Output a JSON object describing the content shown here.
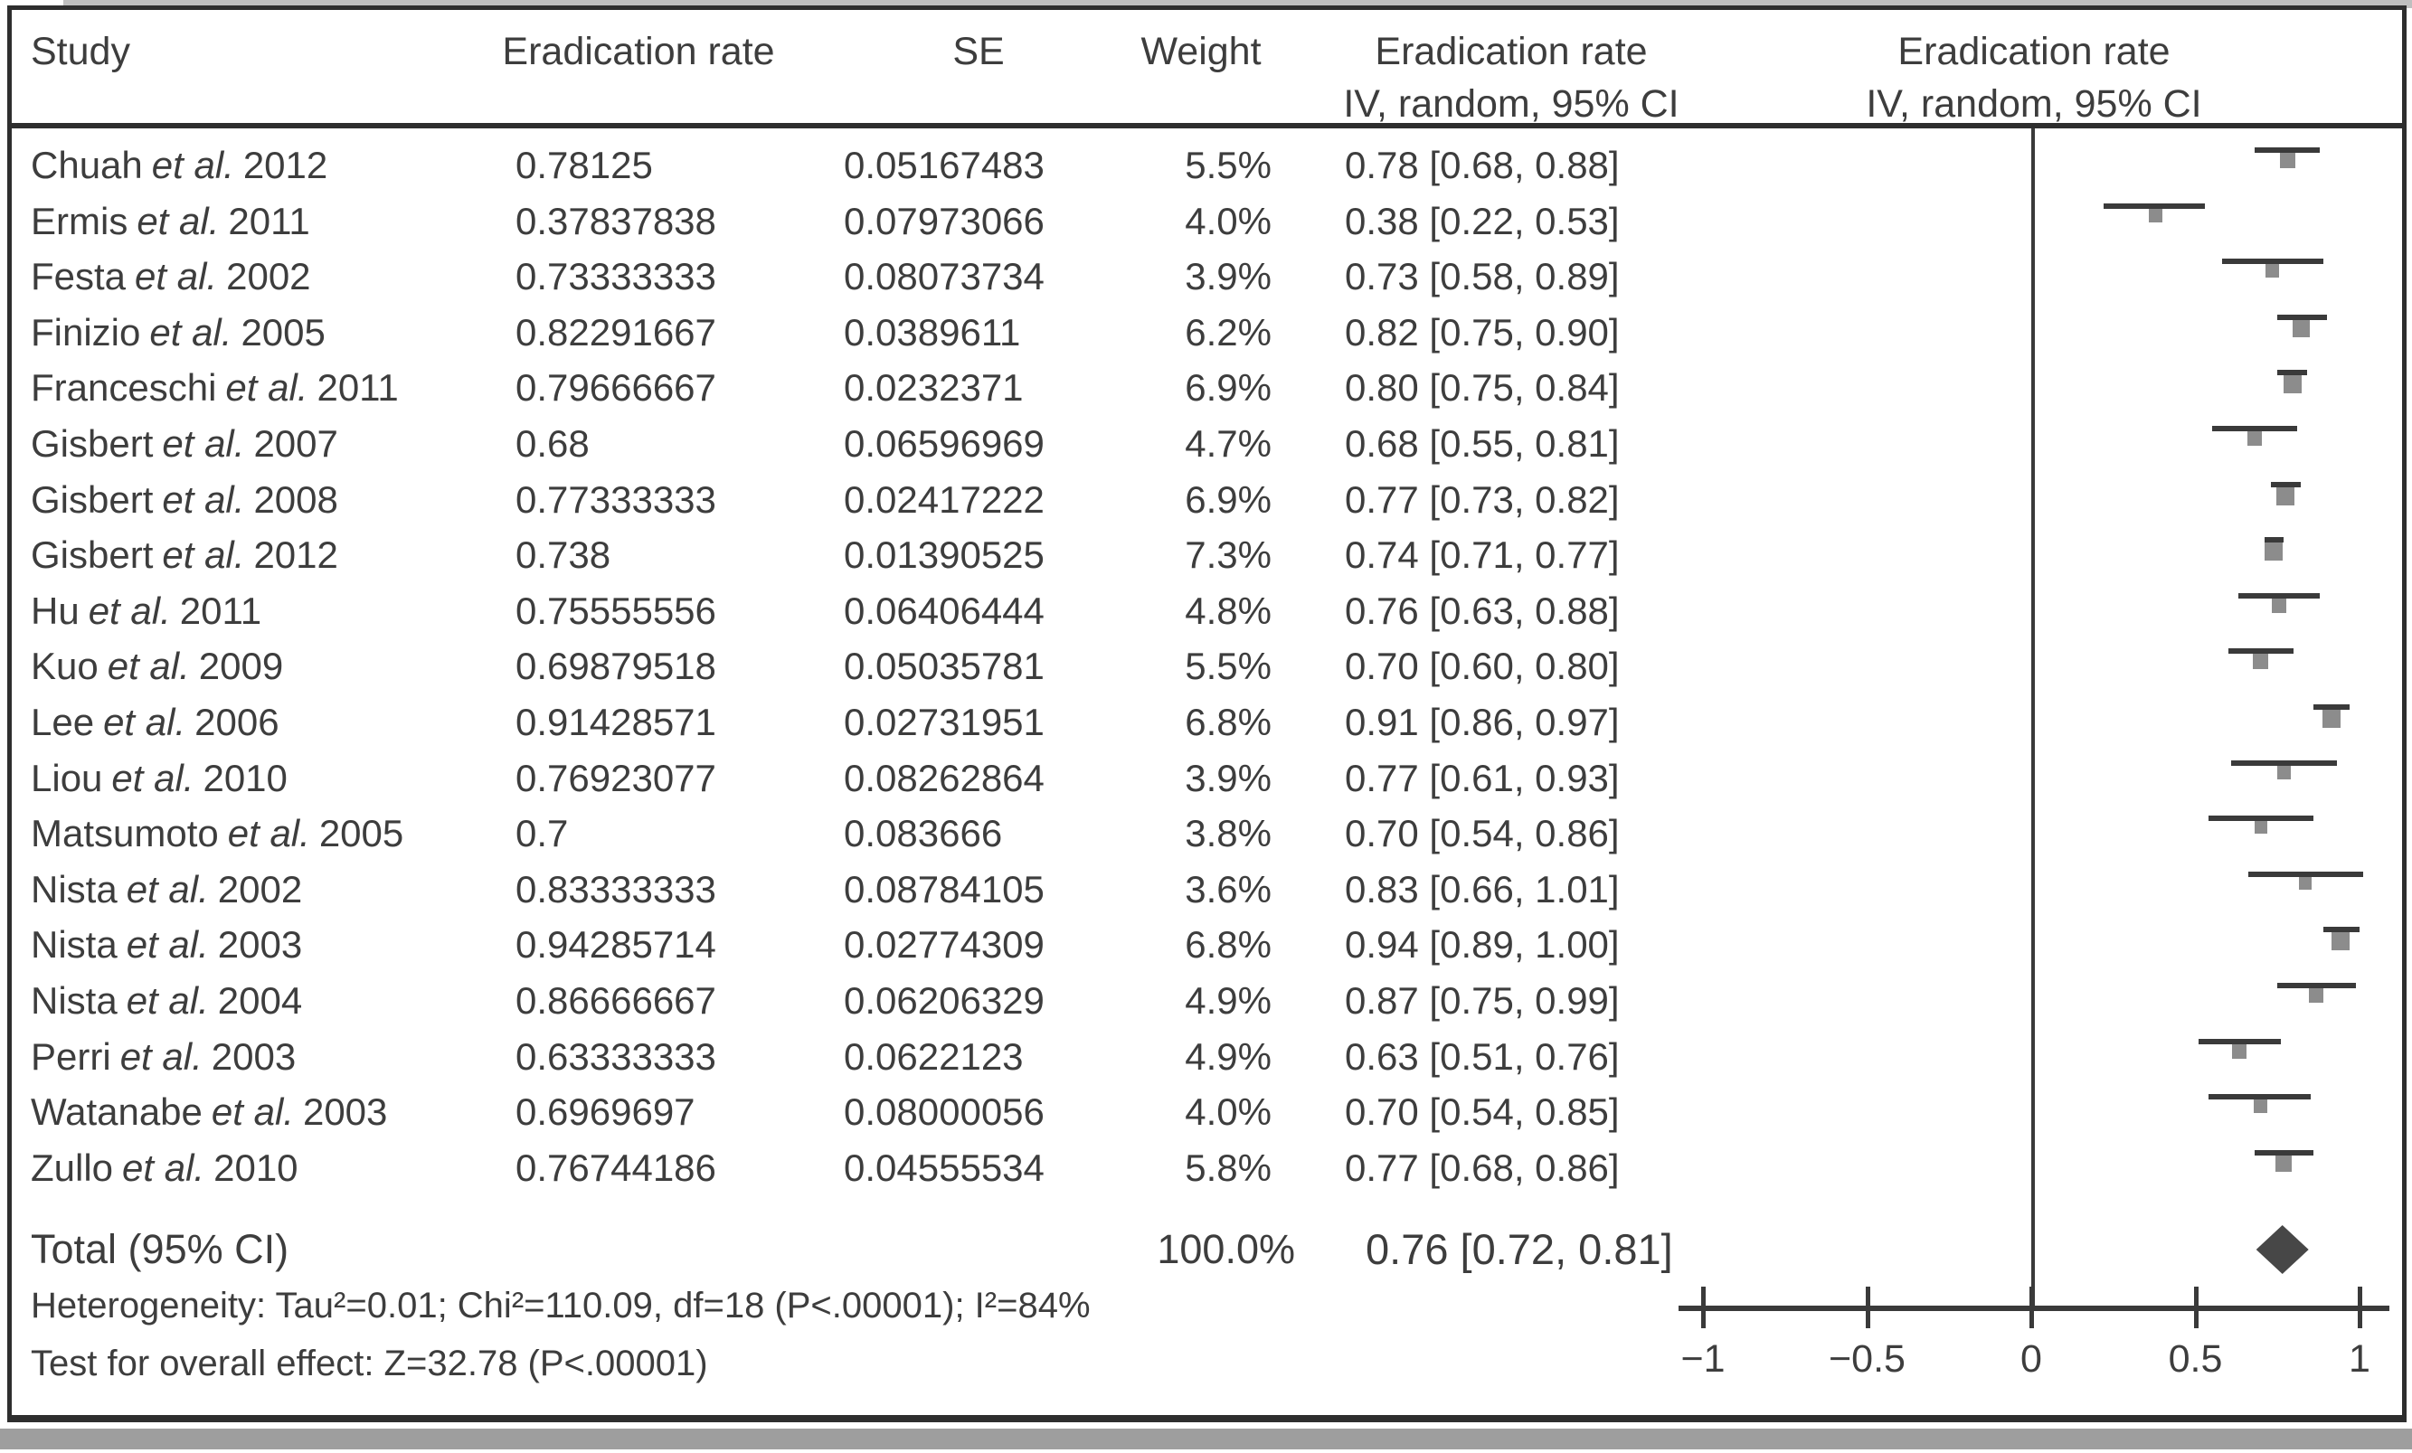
{
  "labels": {
    "et_al": "et al."
  },
  "header": {
    "study": "Study",
    "rate": "Eradication rate",
    "se": "SE",
    "weight": "Weight",
    "ci_line1": "Eradication rate",
    "ci_line2": "IV, random, 95% CI",
    "plot_line1": "Eradication rate",
    "plot_line2": "IV, random, 95% CI"
  },
  "table": {
    "rows": [
      {
        "author": "Chuah",
        "year": "2012",
        "rate": "0.78125",
        "se": "0.05167483",
        "weight": "5.5%",
        "ci": "0.78 [0.68, 0.88]"
      },
      {
        "author": "Ermis",
        "year": "2011",
        "rate": "0.37837838",
        "se": "0.07973066",
        "weight": "4.0%",
        "ci": "0.38 [0.22, 0.53]"
      },
      {
        "author": "Festa",
        "year": "2002",
        "rate": "0.73333333",
        "se": "0.08073734",
        "weight": "3.9%",
        "ci": "0.73 [0.58, 0.89]"
      },
      {
        "author": "Finizio",
        "year": "2005",
        "rate": "0.82291667",
        "se": "0.0389611",
        "weight": "6.2%",
        "ci": "0.82 [0.75, 0.90]"
      },
      {
        "author": "Franceschi",
        "year": "2011",
        "rate": "0.79666667",
        "se": "0.0232371",
        "weight": "6.9%",
        "ci": "0.80 [0.75, 0.84]"
      },
      {
        "author": "Gisbert",
        "year": "2007",
        "rate": "0.68",
        "se": "0.06596969",
        "weight": "4.7%",
        "ci": "0.68 [0.55, 0.81]"
      },
      {
        "author": "Gisbert",
        "year": "2008",
        "rate": "0.77333333",
        "se": "0.02417222",
        "weight": "6.9%",
        "ci": "0.77 [0.73, 0.82]"
      },
      {
        "author": "Gisbert",
        "year": "2012",
        "rate": "0.738",
        "se": "0.01390525",
        "weight": "7.3%",
        "ci": "0.74 [0.71, 0.77]"
      },
      {
        "author": "Hu",
        "year": "2011",
        "rate": "0.75555556",
        "se": "0.06406444",
        "weight": "4.8%",
        "ci": "0.76 [0.63, 0.88]"
      },
      {
        "author": "Kuo",
        "year": "2009",
        "rate": "0.69879518",
        "se": "0.05035781",
        "weight": "5.5%",
        "ci": "0.70 [0.60, 0.80]"
      },
      {
        "author": "Lee",
        "year": "2006",
        "rate": "0.91428571",
        "se": "0.02731951",
        "weight": "6.8%",
        "ci": "0.91 [0.86, 0.97]"
      },
      {
        "author": "Liou",
        "year": "2010",
        "rate": "0.76923077",
        "se": "0.08262864",
        "weight": "3.9%",
        "ci": "0.77 [0.61, 0.93]"
      },
      {
        "author": "Matsumoto",
        "year": "2005",
        "rate": "0.7",
        "se": "0.083666",
        "weight": "3.8%",
        "ci": "0.70 [0.54, 0.86]"
      },
      {
        "author": "Nista",
        "year": "2002",
        "rate": "0.83333333",
        "se": "0.08784105",
        "weight": "3.6%",
        "ci": "0.83 [0.66, 1.01]"
      },
      {
        "author": "Nista",
        "year": "2003",
        "rate": "0.94285714",
        "se": "0.02774309",
        "weight": "6.8%",
        "ci": "0.94 [0.89, 1.00]"
      },
      {
        "author": "Nista",
        "year": "2004",
        "rate": "0.86666667",
        "se": "0.06206329",
        "weight": "4.9%",
        "ci": "0.87 [0.75, 0.99]"
      },
      {
        "author": "Perri",
        "year": "2003",
        "rate": "0.63333333",
        "se": "0.0622123",
        "weight": "4.9%",
        "ci": "0.63 [0.51, 0.76]"
      },
      {
        "author": "Watanabe",
        "year": "2003",
        "rate": "0.6969697",
        "se": "0.08000056",
        "weight": "4.0%",
        "ci": "0.70 [0.54, 0.85]"
      },
      {
        "author": "Zullo",
        "year": "2010",
        "rate": "0.76744186",
        "se": "0.04555534",
        "weight": "5.8%",
        "ci": "0.77 [0.68, 0.86]"
      }
    ]
  },
  "total": {
    "label": "Total (95% CI)",
    "weight": "100.0%",
    "ci": "0.76 [0.72, 0.81]"
  },
  "footer": {
    "heterogeneity": "Heterogeneity: Tau²=0.01; Chi²=110.09, df=18 (P<.00001); I²=84%",
    "overall_effect": "Test for overall effect: Z=32.78 (P<.00001)"
  },
  "axis": {
    "ticks": [
      {
        "label": "−1",
        "value": -1
      },
      {
        "label": "−0.5",
        "value": -0.5
      },
      {
        "label": "0",
        "value": 0
      },
      {
        "label": "0.5",
        "value": 0.5
      },
      {
        "label": "1",
        "value": 1
      }
    ]
  },
  "colors": {
    "text": "#3d3d3d",
    "frame": "#2e2e2e",
    "ci_line": "#3a3a3a",
    "square": "#8c8c8c",
    "diamond": "#474747"
  },
  "chart_data": {
    "type": "forest",
    "title": "",
    "xlabel": "",
    "x_range": [
      -1,
      1
    ],
    "x_ticks": [
      -1,
      -0.5,
      0,
      0.5,
      1
    ],
    "zero_line": 0,
    "effect_label": "Eradication rate, IV, random, 95% CI",
    "studies": [
      {
        "label": "Chuah et al. 2012",
        "estimate": 0.78125,
        "se": 0.05167483,
        "weight_pct": 5.5,
        "ci95": [
          0.68,
          0.88
        ]
      },
      {
        "label": "Ermis et al. 2011",
        "estimate": 0.37837838,
        "se": 0.07973066,
        "weight_pct": 4.0,
        "ci95": [
          0.22,
          0.53
        ]
      },
      {
        "label": "Festa et al. 2002",
        "estimate": 0.73333333,
        "se": 0.08073734,
        "weight_pct": 3.9,
        "ci95": [
          0.58,
          0.89
        ]
      },
      {
        "label": "Finizio et al. 2005",
        "estimate": 0.82291667,
        "se": 0.0389611,
        "weight_pct": 6.2,
        "ci95": [
          0.75,
          0.9
        ]
      },
      {
        "label": "Franceschi et al. 2011",
        "estimate": 0.79666667,
        "se": 0.0232371,
        "weight_pct": 6.9,
        "ci95": [
          0.75,
          0.84
        ]
      },
      {
        "label": "Gisbert et al. 2007",
        "estimate": 0.68,
        "se": 0.06596969,
        "weight_pct": 4.7,
        "ci95": [
          0.55,
          0.81
        ]
      },
      {
        "label": "Gisbert et al. 2008",
        "estimate": 0.77333333,
        "se": 0.02417222,
        "weight_pct": 6.9,
        "ci95": [
          0.73,
          0.82
        ]
      },
      {
        "label": "Gisbert et al. 2012",
        "estimate": 0.738,
        "se": 0.01390525,
        "weight_pct": 7.3,
        "ci95": [
          0.71,
          0.77
        ]
      },
      {
        "label": "Hu et al. 2011",
        "estimate": 0.75555556,
        "se": 0.06406444,
        "weight_pct": 4.8,
        "ci95": [
          0.63,
          0.88
        ]
      },
      {
        "label": "Kuo et al. 2009",
        "estimate": 0.69879518,
        "se": 0.05035781,
        "weight_pct": 5.5,
        "ci95": [
          0.6,
          0.8
        ]
      },
      {
        "label": "Lee et al. 2006",
        "estimate": 0.91428571,
        "se": 0.02731951,
        "weight_pct": 6.8,
        "ci95": [
          0.86,
          0.97
        ]
      },
      {
        "label": "Liou et al. 2010",
        "estimate": 0.76923077,
        "se": 0.08262864,
        "weight_pct": 3.9,
        "ci95": [
          0.61,
          0.93
        ]
      },
      {
        "label": "Matsumoto et al. 2005",
        "estimate": 0.7,
        "se": 0.083666,
        "weight_pct": 3.8,
        "ci95": [
          0.54,
          0.86
        ]
      },
      {
        "label": "Nista et al. 2002",
        "estimate": 0.83333333,
        "se": 0.08784105,
        "weight_pct": 3.6,
        "ci95": [
          0.66,
          1.01
        ]
      },
      {
        "label": "Nista et al. 2003",
        "estimate": 0.94285714,
        "se": 0.02774309,
        "weight_pct": 6.8,
        "ci95": [
          0.89,
          1.0
        ]
      },
      {
        "label": "Nista et al. 2004",
        "estimate": 0.86666667,
        "se": 0.06206329,
        "weight_pct": 4.9,
        "ci95": [
          0.75,
          0.99
        ]
      },
      {
        "label": "Perri et al. 2003",
        "estimate": 0.63333333,
        "se": 0.0622123,
        "weight_pct": 4.9,
        "ci95": [
          0.51,
          0.76
        ]
      },
      {
        "label": "Watanabe et al. 2003",
        "estimate": 0.6969697,
        "se": 0.08000056,
        "weight_pct": 4.0,
        "ci95": [
          0.54,
          0.85
        ]
      },
      {
        "label": "Zullo et al. 2010",
        "estimate": 0.76744186,
        "se": 0.04555534,
        "weight_pct": 5.8,
        "ci95": [
          0.68,
          0.86
        ]
      }
    ],
    "total": {
      "label": "Total (95% CI)",
      "estimate": 0.76,
      "ci95": [
        0.72,
        0.81
      ],
      "weight_pct": 100.0
    },
    "heterogeneity": {
      "tau2": 0.01,
      "chi2": 110.09,
      "df": 18,
      "p": "<.00001",
      "i2_pct": 84
    },
    "overall_effect": {
      "z": 32.78,
      "p": "<.00001"
    }
  }
}
